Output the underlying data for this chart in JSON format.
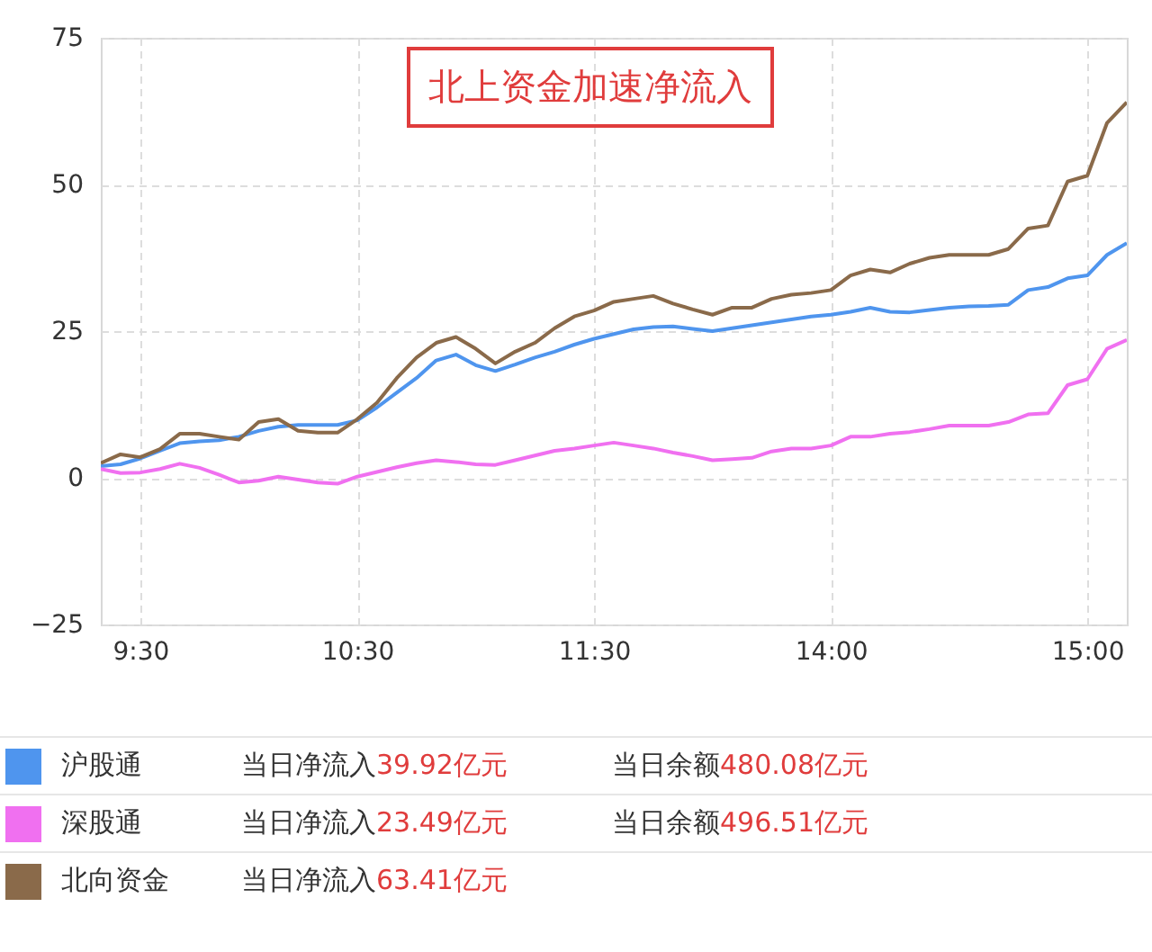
{
  "chart_data": {
    "type": "line",
    "categories": [
      null,
      null,
      "9:30",
      null,
      null,
      null,
      null,
      null,
      null,
      null,
      null,
      null,
      null,
      "10:30",
      null,
      null,
      null,
      null,
      null,
      null,
      null,
      null,
      null,
      null,
      null,
      "11:30",
      null,
      null,
      null,
      null,
      null,
      null,
      null,
      null,
      null,
      null,
      null,
      "14:00",
      null,
      null,
      null,
      null,
      null,
      null,
      null,
      null,
      null,
      null,
      null,
      null,
      "15:00",
      null,
      null
    ],
    "series": [
      {
        "name": "沪股通",
        "color": "#4f95ee",
        "values": [
          2,
          2.3,
          3.3,
          4.6,
          5.9,
          6.2,
          6.4,
          7,
          8,
          8.7,
          9,
          9,
          9,
          9.8,
          12,
          14.5,
          17,
          20,
          21,
          19.2,
          18.2,
          19.3,
          20.5,
          21.5,
          22.7,
          23.7,
          24.5,
          25.3,
          25.7,
          25.8,
          25.4,
          25,
          25.5,
          26,
          26.5,
          27,
          27.5,
          27.8,
          28.3,
          29,
          28.3,
          28.2,
          28.6,
          29,
          29.2,
          29.3,
          29.5,
          32,
          32.5,
          34,
          34.5,
          38,
          40
        ]
      },
      {
        "name": "深股通",
        "color": "#f070f0",
        "values": [
          1.5,
          0.8,
          0.9,
          1.5,
          2.4,
          1.7,
          0.5,
          -0.8,
          -0.5,
          0.2,
          -0.3,
          -0.8,
          -1,
          0.2,
          1,
          1.8,
          2.5,
          3,
          2.7,
          2.3,
          2.2,
          3,
          3.8,
          4.6,
          5,
          5.5,
          6,
          5.5,
          5,
          4.3,
          3.7,
          3,
          3.2,
          3.4,
          4.5,
          5,
          5,
          5.5,
          7,
          7,
          7.5,
          7.8,
          8.3,
          8.9,
          8.9,
          8.9,
          9.5,
          10.8,
          11,
          15.8,
          16.8,
          22,
          23.5
        ]
      },
      {
        "name": "北向资金",
        "color": "#8a6a4a",
        "values": [
          2.5,
          4,
          3.5,
          4.9,
          7.5,
          7.5,
          7,
          6.5,
          9.5,
          10,
          8,
          7.7,
          7.7,
          10,
          12.8,
          17,
          20.5,
          23,
          24,
          22,
          19.5,
          21.5,
          23,
          25.5,
          27.5,
          28.5,
          30,
          30.5,
          31,
          29.7,
          28.7,
          27.8,
          29,
          29,
          30.5,
          31.2,
          31.5,
          32,
          34.5,
          35.5,
          35,
          36.5,
          37.5,
          38,
          38,
          38,
          39,
          42.5,
          43,
          50.5,
          51.5,
          60.5,
          64
        ]
      }
    ],
    "ylim": [
      -25,
      75
    ],
    "yticks": [
      -25,
      0,
      25,
      50,
      75
    ],
    "grid": true,
    "legend": "bottom",
    "annotations": [
      "北上资金加速净流入",
      "当日净流入39.92亿元",
      "当日余额480.08亿元",
      "当日净流入23.49亿元",
      "当日余额496.51亿元",
      "当日净流入63.41亿元"
    ]
  }
}
